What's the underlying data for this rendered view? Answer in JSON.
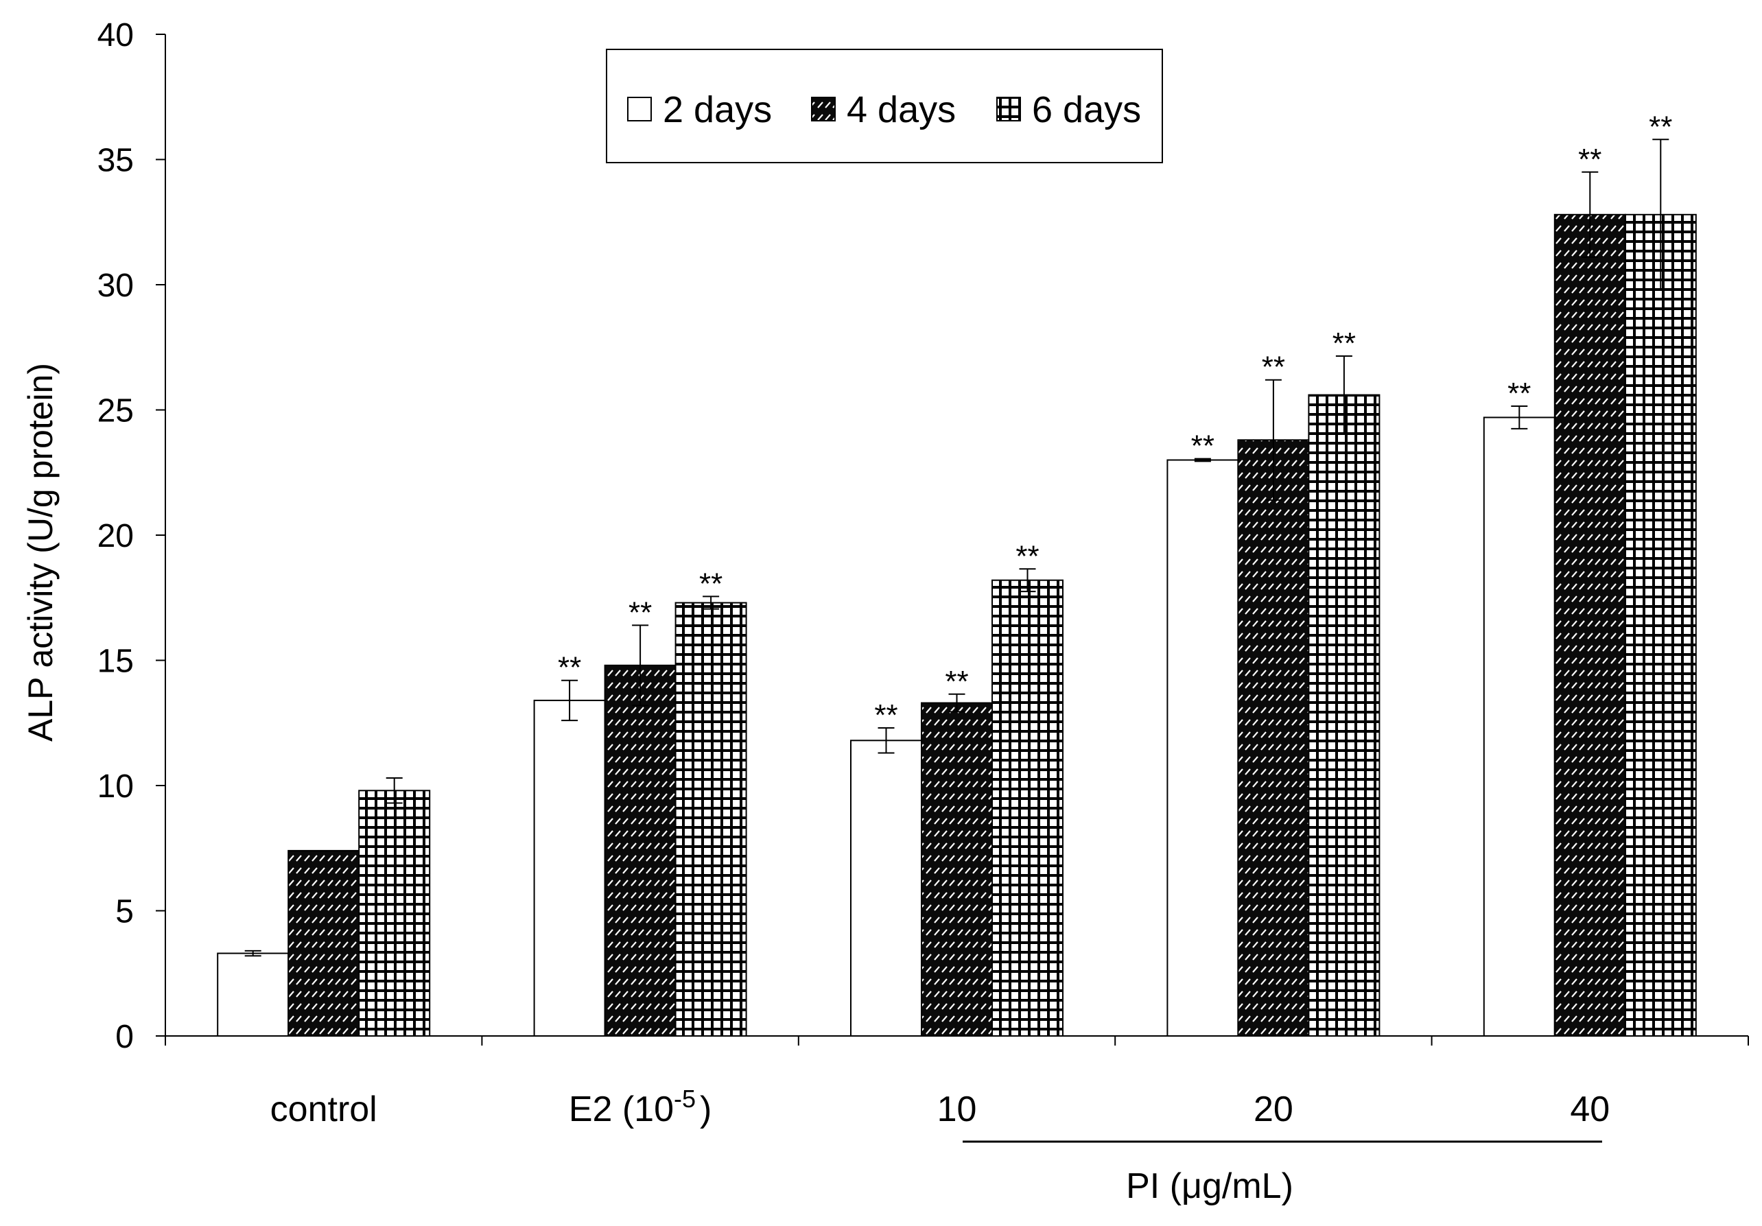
{
  "chart_data": {
    "type": "bar",
    "title": "",
    "ylabel": "ALP activity (U/g protein)",
    "xlabel": "PI (μg/mL)",
    "ylim": [
      0,
      40
    ],
    "yticks": [
      0,
      5,
      10,
      15,
      20,
      25,
      30,
      35,
      40
    ],
    "categories": [
      "control",
      "E2 (10",
      "10",
      "20",
      "40"
    ],
    "e2_superscript": "-5",
    "e2_suffix": ")",
    "legend_position": "top-center",
    "significance_mark": "**",
    "series": [
      {
        "name": "2 days",
        "pattern": "white",
        "values": [
          3.3,
          13.4,
          11.8,
          23.0,
          24.7
        ],
        "errors": [
          0.1,
          0.8,
          0.5,
          0.05,
          0.45
        ],
        "significant": [
          false,
          true,
          true,
          true,
          true
        ]
      },
      {
        "name": "4 days",
        "pattern": "black-diagonal",
        "values": [
          7.4,
          14.8,
          13.3,
          23.8,
          32.8
        ],
        "errors": [
          0.0,
          1.6,
          0.35,
          2.4,
          1.7
        ],
        "significant": [
          false,
          true,
          true,
          true,
          true
        ]
      },
      {
        "name": "6 days",
        "pattern": "grid",
        "values": [
          9.8,
          17.3,
          18.2,
          25.6,
          32.8
        ],
        "errors": [
          0.5,
          0.25,
          0.45,
          1.55,
          3.0
        ],
        "significant": [
          false,
          true,
          true,
          true,
          true
        ]
      }
    ]
  }
}
